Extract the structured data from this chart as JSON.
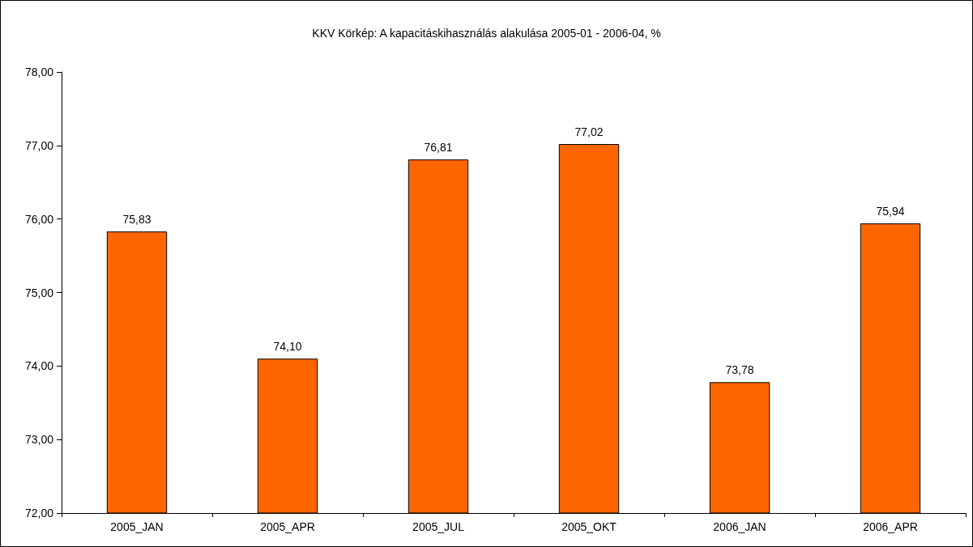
{
  "chart_data": {
    "type": "bar",
    "title": "KKV Körkép: A kapacitáskihasználás alakulása 2005-01 - 2006-04, %",
    "categories": [
      "2005_JAN",
      "2005_APR",
      "2005_JUL",
      "2005_OKT",
      "2006_JAN",
      "2006_APR"
    ],
    "values": [
      75.83,
      74.1,
      76.81,
      77.02,
      73.78,
      75.94
    ],
    "value_labels": [
      "75,83",
      "74,10",
      "76,81",
      "77,02",
      "73,78",
      "75,94"
    ],
    "color": "#ff6600",
    "ylim": [
      72,
      78
    ],
    "yticks": [
      {
        "value": 72,
        "label": "72,00"
      },
      {
        "value": 73,
        "label": "73,00"
      },
      {
        "value": 74,
        "label": "74,00"
      },
      {
        "value": 75,
        "label": "75,00"
      },
      {
        "value": 76,
        "label": "76,00"
      },
      {
        "value": 77,
        "label": "77,00"
      },
      {
        "value": 78,
        "label": "78,00"
      }
    ],
    "grid": false
  }
}
